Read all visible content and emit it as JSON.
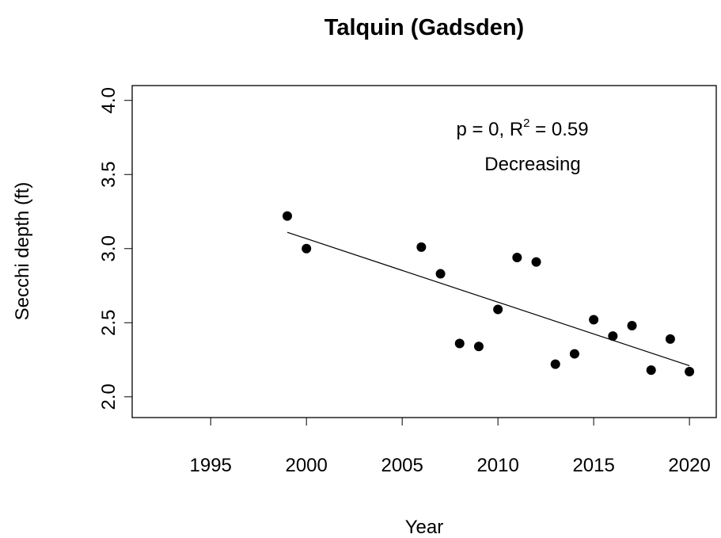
{
  "chart_data": {
    "type": "scatter",
    "title": "Talquin (Gadsden)",
    "xlabel": "Year",
    "ylabel": "Secchi depth (ft)",
    "x": [
      1999,
      2000,
      2006,
      2007,
      2008,
      2009,
      2010,
      2011,
      2012,
      2013,
      2014,
      2015,
      2016,
      2017,
      2018,
      2019,
      2020
    ],
    "values": [
      3.22,
      3.0,
      3.01,
      2.83,
      2.36,
      2.34,
      2.59,
      2.94,
      2.91,
      2.22,
      2.29,
      2.52,
      2.41,
      2.48,
      2.18,
      2.39,
      2.17
    ],
    "color": "#000000",
    "trend_line": {
      "x": [
        1999,
        2020
      ],
      "values": [
        3.11,
        2.21
      ]
    },
    "annotation": {
      "text_before": "p = 0, R",
      "superscript": "2",
      "text_after": " = 0.59",
      "trend": "Decreasing"
    },
    "xlim": [
      1990.9,
      2021.4
    ],
    "ylim": [
      1.86,
      4.1
    ],
    "xticks": [
      1995,
      2000,
      2005,
      2010,
      2015,
      2020
    ],
    "yticks": [
      {
        "value": 2,
        "label": "2.0"
      },
      2.5,
      {
        "value": 3,
        "label": "3.0"
      },
      3.5,
      {
        "value": 4,
        "label": "4.0"
      }
    ],
    "grid": false
  }
}
